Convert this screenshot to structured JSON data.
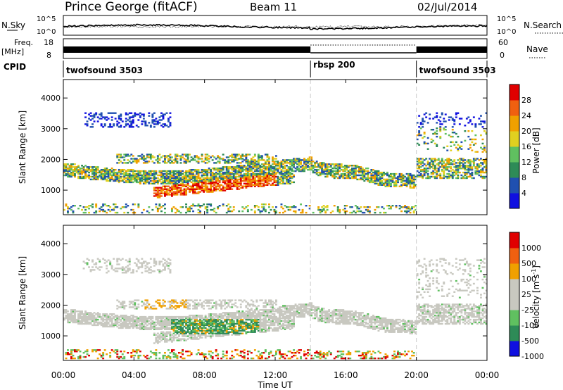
{
  "header": {
    "station": "Prince George (fitACF)",
    "beam": "Beam 11",
    "date": "02/Jul/2014"
  },
  "noise_panel": {
    "left_label": "N.Sky",
    "right_label": "N.Search",
    "left_ticks": [
      "10^5",
      "10^0"
    ],
    "right_ticks": [
      "10^5",
      "10^0"
    ]
  },
  "freq_panel": {
    "left_label_1": "Freq.",
    "left_label_2": "[MHz]",
    "left_ticks": [
      "18",
      "8"
    ],
    "right_label": "Nave",
    "right_ticks": [
      "60",
      "0"
    ]
  },
  "cpid_panel": {
    "label": "CPID",
    "segments": [
      {
        "name": "twofsound 3503",
        "start_hour": 0,
        "end_hour": 14
      },
      {
        "name": "rbsp 200",
        "start_hour": 14,
        "end_hour": 20
      },
      {
        "name": "twofsound 3503",
        "start_hour": 20,
        "end_hour": 24
      }
    ]
  },
  "time_axis": {
    "label": "Time UT",
    "ticks": [
      "00:00",
      "04:00",
      "08:00",
      "12:00",
      "16:00",
      "20:00",
      "00:00"
    ]
  },
  "colors": {
    "power": [
      "#1010e0",
      "#2050b0",
      "#2e8b57",
      "#60c060",
      "#e0d020",
      "#f0a000",
      "#f06010",
      "#e00000"
    ],
    "velocity": [
      "#e00000",
      "#f06010",
      "#f0a000",
      "#c8c8c0",
      "#c8c8c0",
      "#60c060",
      "#2e8b57",
      "#1010e0"
    ]
  },
  "chart_data": [
    {
      "type": "heatmap",
      "title": "",
      "xlabel": "",
      "ylabel": "Slant Range [km]",
      "xlim": [
        0,
        24
      ],
      "ylim": [
        200,
        4600
      ],
      "y_ticks": [
        "1000",
        "2000",
        "3000",
        "4000"
      ],
      "colorbar": {
        "label": "Power [dB]",
        "ticks": [
          "4",
          "8",
          "12",
          "16",
          "20",
          "24",
          "28"
        ],
        "range": [
          0,
          32
        ]
      }
    },
    {
      "type": "heatmap",
      "title": "",
      "xlabel": "Time UT",
      "ylabel": "Slant Range [km]",
      "xlim": [
        0,
        24
      ],
      "ylim": [
        200,
        4600
      ],
      "y_ticks": [
        "1000",
        "2000",
        "3000",
        "4000"
      ],
      "colorbar": {
        "label": "Velocity [m s",
        "label_sup": "-1",
        "label_end": "]",
        "ticks": [
          "1000",
          "500",
          "100",
          "25",
          "-25",
          "-100",
          "-500",
          "-1000"
        ]
      }
    }
  ]
}
